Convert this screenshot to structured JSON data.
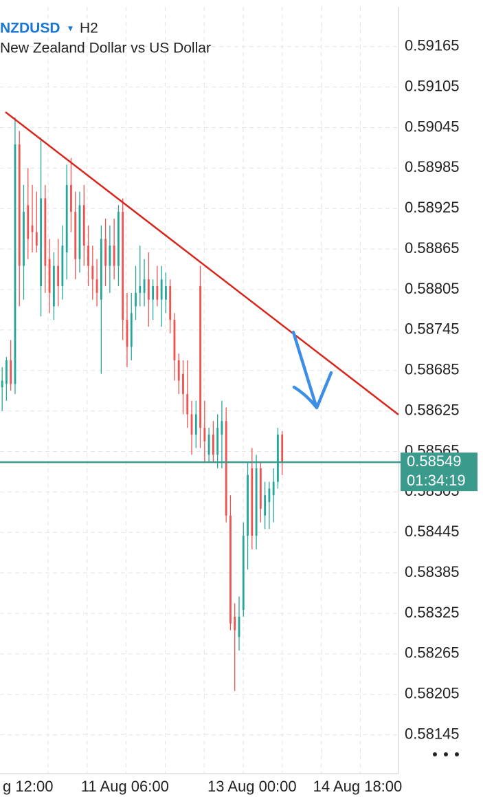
{
  "chart_data": {
    "type": "candlestick",
    "title": "NZDUSD",
    "timeframe": "H2",
    "subtitle": "New Zealand Dollar vs US Dollar",
    "up_color": "#26a69a",
    "down_color": "#ef5350",
    "open": [
      0.5866,
      0.58665,
      0.587,
      0.58665,
      0.5902,
      0.5884,
      0.5893,
      0.589,
      0.5889,
      0.5881,
      0.5894,
      0.5885,
      0.5878,
      0.5884,
      0.5881,
      0.5886,
      0.5896,
      0.5892,
      0.5885,
      0.5893,
      0.5887,
      0.5884,
      0.5882,
      0.5879,
      0.5888,
      0.5884,
      0.5887,
      0.5884,
      0.5892,
      0.5876,
      0.5872,
      0.5878,
      0.588,
      0.588,
      0.5882,
      0.5879,
      0.5881,
      0.5879,
      0.5879,
      0.5881,
      0.5876,
      0.587,
      0.5868,
      0.5865,
      0.5862,
      0.5859,
      0.5881,
      0.586,
      0.5856,
      0.5859,
      0.5856,
      0.5859,
      0.5861,
      0.5847,
      0.5832,
      0.5829,
      0.5833,
      0.5844,
      0.5854,
      0.5844,
      0.5854,
      0.5847,
      0.5849,
      0.585,
      0.5852,
      0.5859
    ],
    "high": [
      0.5869,
      0.58705,
      0.5873,
      0.5906,
      0.5904,
      0.5896,
      0.58985,
      0.5896,
      0.5895,
      0.5903,
      0.5896,
      0.5888,
      0.5886,
      0.5888,
      0.589,
      0.5899,
      0.59,
      0.5895,
      0.5895,
      0.5896,
      0.589,
      0.5887,
      0.5885,
      0.589,
      0.5891,
      0.589,
      0.5891,
      0.5893,
      0.5894,
      0.588,
      0.588,
      0.5884,
      0.5887,
      0.5885,
      0.5886,
      0.5882,
      0.5884,
      0.5884,
      0.5883,
      0.5882,
      0.5877,
      0.5871,
      0.587,
      0.587,
      0.5864,
      0.5864,
      0.5884,
      0.5864,
      0.586,
      0.5861,
      0.5862,
      0.5864,
      0.5863,
      0.585,
      0.5834,
      0.5835,
      0.5846,
      0.5855,
      0.5857,
      0.5856,
      0.5855,
      0.5852,
      0.5852,
      0.5854,
      0.586,
      0.58595
    ],
    "low": [
      0.58625,
      0.5864,
      0.58655,
      0.5865,
      0.5878,
      0.5879,
      0.5885,
      0.5886,
      0.5886,
      0.58765,
      0.588,
      0.5877,
      0.5876,
      0.5878,
      0.5879,
      0.5882,
      0.5889,
      0.5882,
      0.5883,
      0.5884,
      0.5881,
      0.5879,
      0.5878,
      0.5868,
      0.5881,
      0.588,
      0.5882,
      0.5881,
      0.5873,
      0.5869,
      0.587,
      0.5876,
      0.5878,
      0.5878,
      0.5875,
      0.5876,
      0.5878,
      0.5875,
      0.5877,
      0.5874,
      0.5867,
      0.5865,
      0.5862,
      0.586,
      0.5856,
      0.5857,
      0.5857,
      0.5855,
      0.5855,
      0.5855,
      0.5854,
      0.5854,
      0.5846,
      0.583,
      0.5821,
      0.5827,
      0.5832,
      0.5839,
      0.5842,
      0.5842,
      0.5846,
      0.5845,
      0.5845,
      0.5846,
      0.5851,
      0.5853
    ],
    "close": [
      0.5867,
      0.587,
      0.58665,
      0.5902,
      0.5884,
      0.5892,
      0.5888,
      0.5889,
      0.5887,
      0.5894,
      0.5884,
      0.588,
      0.5884,
      0.5881,
      0.5887,
      0.5896,
      0.5892,
      0.5885,
      0.5893,
      0.5887,
      0.5884,
      0.5882,
      0.588,
      0.5888,
      0.5884,
      0.5887,
      0.5884,
      0.5892,
      0.5876,
      0.5872,
      0.5877,
      0.588,
      0.5881,
      0.5882,
      0.5879,
      0.5881,
      0.5879,
      0.5882,
      0.5881,
      0.5876,
      0.587,
      0.5867,
      0.5865,
      0.5862,
      0.5859,
      0.5862,
      0.586,
      0.5858,
      0.5859,
      0.5856,
      0.586,
      0.5861,
      0.5847,
      0.5831,
      0.583,
      0.5832,
      0.5844,
      0.5853,
      0.5844,
      0.5854,
      0.5848,
      0.585,
      0.5851,
      0.5852,
      0.5859,
      0.58549
    ],
    "last_price": 0.58549,
    "last_price_color": "#3a9a8c",
    "countdown": "01:34:19",
    "xlim": [
      -0.5,
      92
    ],
    "xticks": [
      {
        "value": 6,
        "label": "g 12:00"
      },
      {
        "value": 28.5,
        "label": "11 Aug 06:00"
      },
      {
        "value": 58,
        "label": "13 Aug 00:00"
      },
      {
        "value": 82.5,
        "label": "14 Aug 18:00"
      }
    ],
    "ylim": [
      0.58113,
      0.59234
    ],
    "yticks": [
      0.58145,
      0.58205,
      0.58265,
      0.58325,
      0.58385,
      0.58445,
      0.58505,
      0.58565,
      0.58625,
      0.58685,
      0.58745,
      0.58805,
      0.58865,
      0.58925,
      0.58985,
      0.59045,
      0.59105,
      0.59165
    ],
    "grid": true
  }
}
